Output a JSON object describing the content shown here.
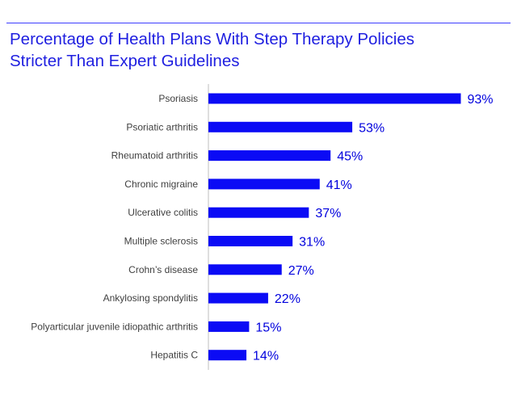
{
  "colors": {
    "bar": "#0b0bf5",
    "accent": "#1f1fe0",
    "axis": "#bfbfbf"
  },
  "chart_data": {
    "type": "bar",
    "orientation": "horizontal",
    "title_lines": [
      "Percentage of Health Plans With Step Therapy Policies",
      "Stricter Than Expert Guidelines"
    ],
    "xlabel": "",
    "ylabel": "",
    "xlim": [
      0,
      100
    ],
    "grid": false,
    "value_suffix": "%",
    "categories": [
      "Psoriasis",
      "Psoriatic arthritis",
      "Rheumatoid arthritis",
      "Chronic migraine",
      "Ulcerative colitis",
      "Multiple sclerosis",
      "Crohn’s disease",
      "Ankylosing spondylitis",
      "Polyarticular juvenile idiopathic arthritis",
      "Hepatitis C"
    ],
    "values": [
      93,
      53,
      45,
      41,
      37,
      31,
      27,
      22,
      15,
      14
    ],
    "data_labels": [
      "93%",
      "53%",
      "45%",
      "41%",
      "37%",
      "31%",
      "27%",
      "22%",
      "15%",
      "14%"
    ]
  }
}
